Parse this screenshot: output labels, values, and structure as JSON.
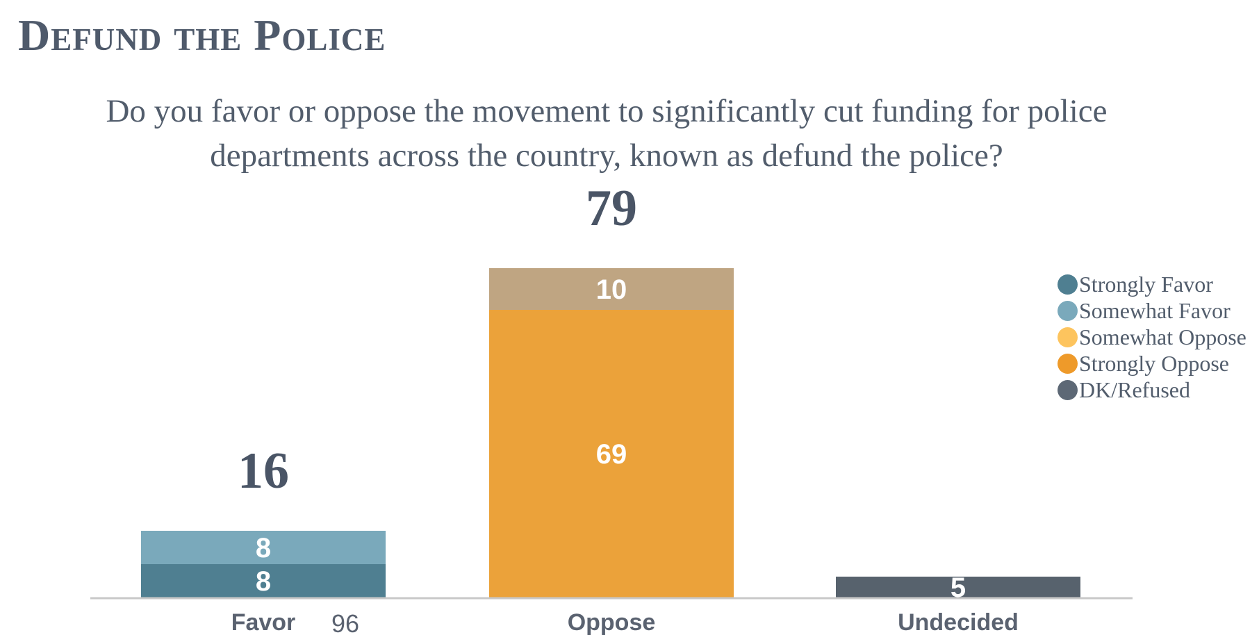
{
  "title": "Defund the Police",
  "question_lines": [
    "Do you favor or oppose the movement to significantly cut funding for police",
    "departments across the country, known as defund the police?"
  ],
  "extra_label": "96",
  "chart_data": {
    "type": "bar",
    "stacked": true,
    "categories": [
      "Favor",
      "Oppose",
      "Undecided"
    ],
    "totals": [
      16,
      79,
      5
    ],
    "segments": [
      {
        "category": "Favor",
        "series": "Strongly Favor",
        "value": 8,
        "color": "#4f7f91"
      },
      {
        "category": "Favor",
        "series": "Somewhat Favor",
        "value": 8,
        "color": "#7aa9bb"
      },
      {
        "category": "Oppose",
        "series": "Strongly Oppose",
        "value": 69,
        "color": "#eba23a"
      },
      {
        "category": "Oppose",
        "series": "Somewhat Oppose",
        "value": 10,
        "color": "#bfa582"
      },
      {
        "category": "Undecided",
        "series": "DK/Refused",
        "value": 5,
        "color": "#57626d"
      }
    ],
    "legend": [
      {
        "label": "Strongly Favor",
        "color": "#4f7f91"
      },
      {
        "label": "Somewhat Favor",
        "color": "#7aa9bb"
      },
      {
        "label": "Somewhat Oppose",
        "color": "#fdc45e"
      },
      {
        "label": "Strongly Oppose",
        "color": "#ee9a2a"
      },
      {
        "label": "DK/Refused",
        "color": "#5d6875"
      }
    ],
    "legend_position": "right",
    "ylim": [
      0,
      79
    ],
    "grid": false
  }
}
